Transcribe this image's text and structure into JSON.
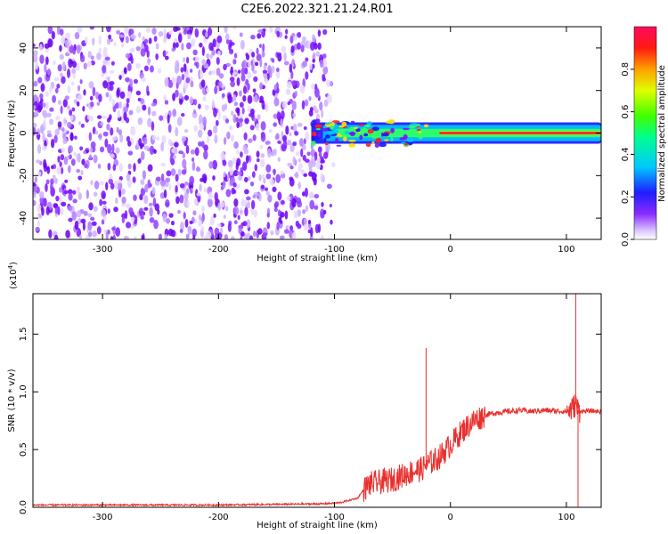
{
  "chart_data": [
    {
      "type": "heatmap",
      "title": "C2E6.2022.321.21.24.R01",
      "xlabel": "Height of straight line (km)",
      "ylabel": "Frequency (Hz)",
      "xlim": [
        -360,
        130
      ],
      "ylim": [
        -50,
        50
      ],
      "x_ticks": [
        -300,
        -200,
        -100,
        0,
        100
      ],
      "y_ticks": [
        -40,
        -20,
        0,
        20,
        40
      ],
      "noise_region_x": [
        -360,
        -100
      ],
      "signal_band": {
        "x_start": -120,
        "x_end": 130,
        "center_frequency": 0,
        "half_width_hz": 3,
        "core_from_x": -10
      },
      "colorbar": {
        "label": "Normalized spectral amplitude",
        "range": [
          0,
          1
        ],
        "ticks": [
          "0.0",
          "0.2",
          "0.4",
          "0.6",
          "0.8"
        ],
        "colormap": "rainbow"
      }
    },
    {
      "type": "line",
      "xlabel": "Height of straight line (km)",
      "ylabel": "SNR (10 * v/v)",
      "multiplier": "(x10",
      "multiplier_exp": "4",
      "multiplier_close": ")",
      "xlim": [
        -360,
        130
      ],
      "ylim": [
        0,
        18500
      ],
      "x_ticks": [
        -300,
        -200,
        -100,
        0,
        100
      ],
      "y_ticks": [
        "0.0",
        "0.5",
        "1.0",
        "1.5"
      ],
      "y_tick_values": [
        0,
        5000,
        10000,
        15000
      ],
      "line_color": "#e8302e",
      "series": [
        {
          "x": [
            -360,
            -300,
            -200,
            -110,
            -95,
            -80,
            -75,
            -70,
            -60,
            -50,
            -40,
            -30,
            -25,
            -20,
            -15,
            -10,
            0,
            10,
            20,
            30,
            40,
            50,
            60,
            70,
            80,
            90,
            100,
            105,
            108,
            110,
            115,
            120,
            130
          ],
          "y": [
            200,
            200,
            200,
            300,
            400,
            800,
            1500,
            2000,
            2200,
            2400,
            2800,
            3200,
            3300,
            3700,
            4000,
            4300,
            5400,
            6600,
            7500,
            8000,
            8200,
            8300,
            8400,
            8300,
            8400,
            8350,
            8300,
            8500,
            9000,
            8400,
            8300,
            8350,
            8300
          ]
        }
      ],
      "spikes": [
        {
          "x": -21,
          "y": 13800
        },
        {
          "x": 108,
          "y": 18600
        },
        {
          "x": 110,
          "y": 0
        }
      ]
    }
  ]
}
